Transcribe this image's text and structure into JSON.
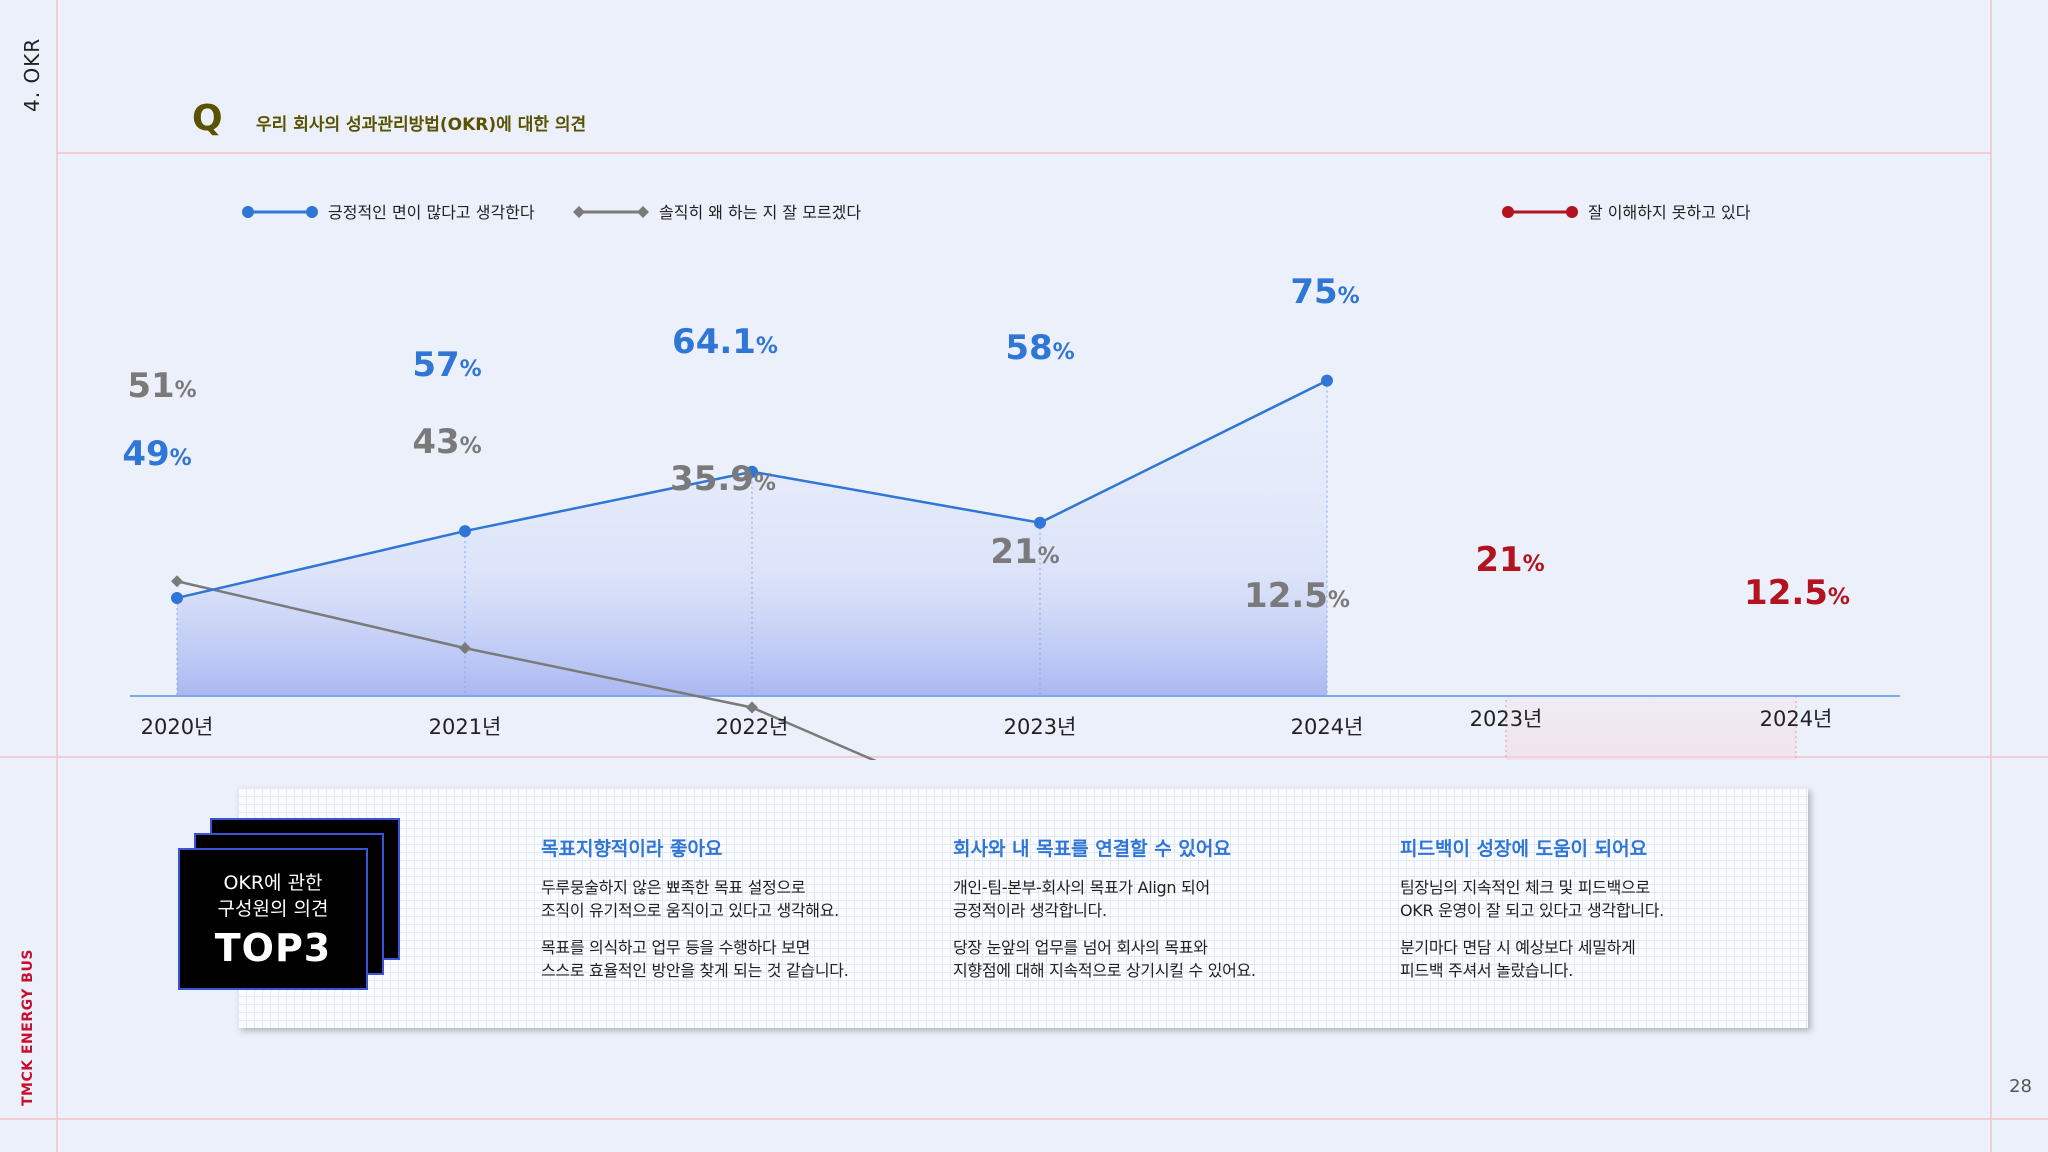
{
  "side": {
    "section": "4. OKR",
    "company": "TMCK ENERGY BUS"
  },
  "page_number": "28",
  "question": {
    "mark": "Q",
    "text": "우리 회사의 성과관리방법(OKR)에 대한 의견"
  },
  "colors": {
    "blue": "#2f76d6",
    "gray": "#7a7a7a",
    "red": "#b3121f"
  },
  "chart_data": [
    {
      "type": "line",
      "x": [
        "2020년",
        "2021년",
        "2022년",
        "2023년",
        "2024년"
      ],
      "series": [
        {
          "name": "긍정적인 면이 많다고 생각한다",
          "values": [
            49,
            57,
            64.1,
            58,
            75
          ],
          "labels": [
            "49",
            "57",
            "64.1",
            "58",
            "75"
          ]
        },
        {
          "name": "솔직히 왜 하는 지 잘 모르겠다",
          "values": [
            51,
            43,
            35.9,
            21,
            12.5
          ],
          "labels": [
            "51",
            "43",
            "35.9",
            "21",
            "12.5"
          ]
        }
      ],
      "unit": "%"
    },
    {
      "type": "line",
      "x": [
        "2023년",
        "2024년"
      ],
      "series": [
        {
          "name": "잘 이해하지 못하고 있다",
          "values": [
            21,
            12.5
          ],
          "labels": [
            "21",
            "12.5"
          ]
        }
      ],
      "unit": "%"
    }
  ],
  "top3_card": {
    "line1": "OKR에 관한",
    "line2": "구성원의 의견",
    "line3": "TOP3"
  },
  "opinions": [
    {
      "title": "목표지향적이라 좋아요",
      "p1": "두루뭉술하지 않은 뾰족한 목표 설정으로\n조직이 유기적으로 움직이고 있다고 생각해요.",
      "p2": "목표를 의식하고 업무 등을 수행하다 보면\n스스로 효율적인 방안을 찾게 되는 것 같습니다."
    },
    {
      "title": "회사와 내 목표를 연결할 수 있어요",
      "p1": "개인-팀-본부-회사의 목표가 Align 되어\n긍정적이라 생각합니다.",
      "p2": "당장 눈앞의 업무를 넘어 회사의 목표와\n지향점에 대해 지속적으로 상기시킬 수 있어요."
    },
    {
      "title": "피드백이 성장에 도움이 되어요",
      "p1": "팀장님의 지속적인 체크 및 피드백으로\nOKR 운영이 잘 되고 있다고 생각합니다.",
      "p2": "분기마다 면담 시 예상보다 세밀하게\n피드백 주셔서 놀랐습니다."
    }
  ]
}
